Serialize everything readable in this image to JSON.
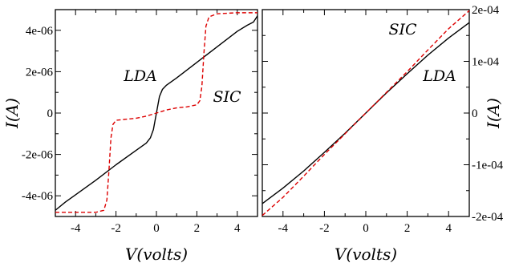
{
  "chart_data": [
    {
      "type": "line",
      "xlabel": "V(volts)",
      "ylabel": "I(A)",
      "xlim": [
        -5,
        5
      ],
      "ylim": [
        -5e-06,
        5e-06
      ],
      "xticks": [
        "-4",
        "-2",
        "0",
        "2",
        "4"
      ],
      "yticks": [
        "-4e-06",
        "-2e-06",
        "0",
        "2e-06",
        "4e-06"
      ],
      "annotations": [
        "LDA",
        "SIC"
      ],
      "series": [
        {
          "name": "LDA",
          "color": "#000000",
          "dash": "solid",
          "x": [
            -5,
            -4.5,
            -4,
            -3,
            -2,
            -1,
            -0.5,
            -0.3,
            -0.15,
            0,
            0.15,
            0.3,
            0.5,
            1,
            2,
            3,
            4,
            4.5,
            4.8,
            5
          ],
          "y": [
            -4.7e-06,
            -4.3e-06,
            -3.95e-06,
            -3.25e-06,
            -2.5e-06,
            -1.8e-06,
            -1.45e-06,
            -1.2e-06,
            -8e-07,
            0,
            8e-07,
            1.15e-06,
            1.35e-06,
            1.7e-06,
            2.45e-06,
            3.2e-06,
            3.95e-06,
            4.25e-06,
            4.4e-06,
            4.7e-06
          ]
        },
        {
          "name": "SIC",
          "color": "#dd0000",
          "dash": "dashed",
          "x": [
            -5,
            -4,
            -3,
            -2.6,
            -2.45,
            -2.35,
            -2.25,
            -2.15,
            -2.0,
            -1.5,
            -1,
            -0.5,
            0,
            0.5,
            1,
            1.5,
            2.0,
            2.15,
            2.25,
            2.35,
            2.45,
            2.6,
            3,
            4,
            5
          ],
          "y": [
            -4.8e-06,
            -4.8e-06,
            -4.8e-06,
            -4.7e-06,
            -4.2e-06,
            -2.8e-06,
            -1.2e-06,
            -5.5e-07,
            -3.5e-07,
            -3e-07,
            -2.5e-07,
            -1.5e-07,
            0,
            1.5e-07,
            2.5e-07,
            3e-07,
            4e-07,
            6e-07,
            1.3e-06,
            2.9e-06,
            4.2e-06,
            4.65e-06,
            4.8e-06,
            4.85e-06,
            4.85e-06
          ]
        }
      ]
    },
    {
      "type": "line",
      "xlabel": "V(volts)",
      "ylabel": "I(A)",
      "xlim": [
        -5,
        5
      ],
      "ylim": [
        -0.0002,
        0.0002
      ],
      "xticks": [
        "-4",
        "-2",
        "0",
        "2",
        "4"
      ],
      "yticks": [
        "-2e-04",
        "-1e-04",
        "0",
        "1e-04",
        "2e-04"
      ],
      "annotations": [
        "SIC",
        "LDA"
      ],
      "series": [
        {
          "name": "LDA",
          "color": "#000000",
          "dash": "solid",
          "x": [
            -5,
            -4,
            -3,
            -2,
            -1,
            0,
            1,
            2,
            3,
            4,
            5
          ],
          "y": [
            -0.000175,
            -0.000145,
            -0.000112,
            -7.6e-05,
            -3.9e-05,
            0,
            3.9e-05,
            7.6e-05,
            0.000112,
            0.000145,
            0.000175
          ]
        },
        {
          "name": "SIC",
          "color": "#dd0000",
          "dash": "dashed",
          "x": [
            -5,
            -4,
            -3,
            -2,
            -1,
            0,
            1,
            2,
            3,
            4,
            5
          ],
          "y": [
            -0.000198,
            -0.000163,
            -0.000122,
            -8e-05,
            -4e-05,
            0,
            4e-05,
            8e-05,
            0.000122,
            0.000163,
            0.000198
          ]
        }
      ]
    }
  ]
}
